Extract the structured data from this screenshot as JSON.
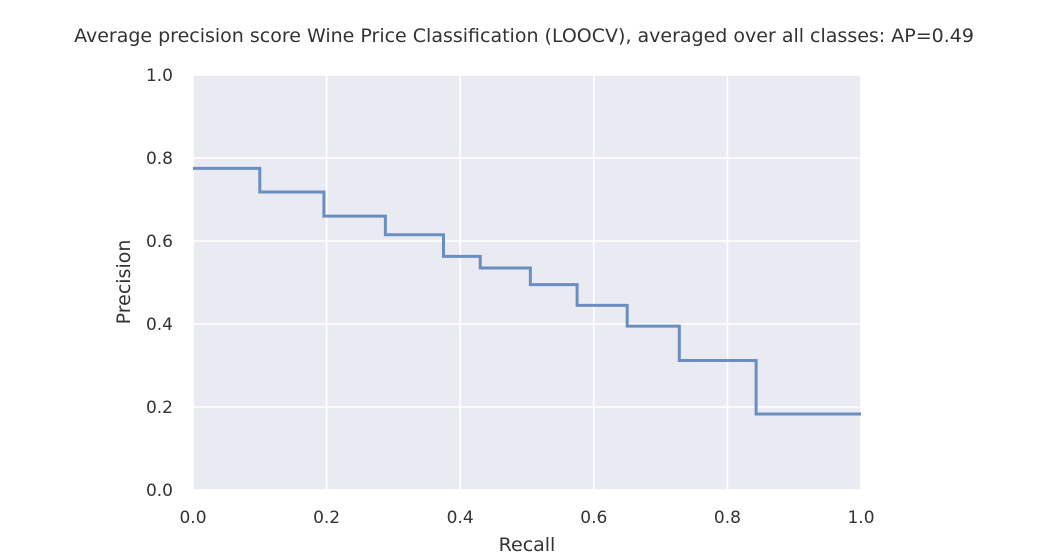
{
  "chart_data": {
    "type": "line",
    "title": "Average precision score Wine Price Classification (LOOCV), averaged over all classes: AP=0.49",
    "xlabel": "Recall",
    "ylabel": "Precision",
    "xlim": [
      0.0,
      1.0
    ],
    "ylim": [
      0.0,
      1.0
    ],
    "xticks": [
      "0.0",
      "0.2",
      "0.4",
      "0.6",
      "0.8",
      "1.0"
    ],
    "yticks": [
      "0.0",
      "0.2",
      "0.4",
      "0.6",
      "0.8",
      "1.0"
    ],
    "grid": true,
    "step": "post",
    "series": [
      {
        "x": [
          0.0,
          0.1,
          0.196,
          0.288,
          0.375,
          0.43,
          0.505,
          0.575,
          0.65,
          0.728,
          0.843,
          1.0
        ],
        "y": [
          0.775,
          0.718,
          0.66,
          0.615,
          0.563,
          0.535,
          0.495,
          0.445,
          0.395,
          0.312,
          0.183,
          0.183
        ],
        "color": "#6c8ebf"
      }
    ],
    "colors": {
      "background": "#eaeaf2",
      "grid": "#ffffff",
      "line": "#6c8ebf"
    }
  }
}
